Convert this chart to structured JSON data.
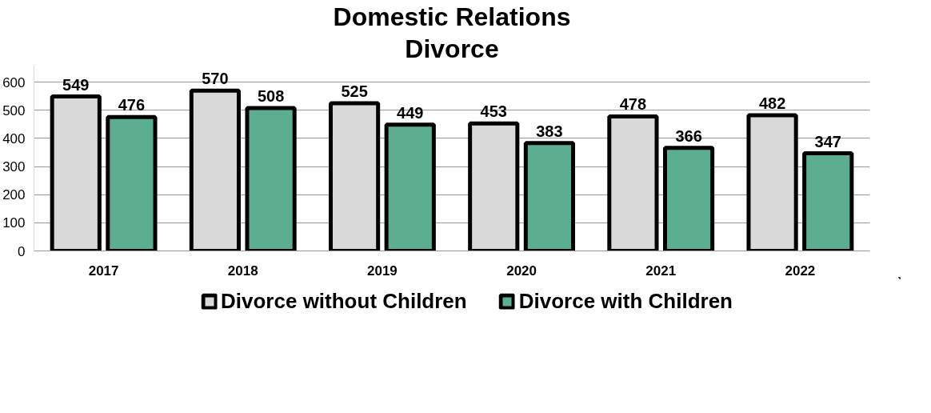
{
  "chart_data": {
    "type": "bar",
    "title": "Domestic Relations",
    "subtitle": "Divorce",
    "categories": [
      "2017",
      "2018",
      "2019",
      "2020",
      "2021",
      "2022"
    ],
    "series": [
      {
        "name": "Divorce without Children",
        "color": "#d9d9d9",
        "values": [
          549,
          570,
          525,
          453,
          478,
          482
        ]
      },
      {
        "name": "Divorce with Children",
        "color": "#5bae8f",
        "values": [
          476,
          508,
          449,
          383,
          366,
          347
        ]
      }
    ],
    "ylim": [
      0,
      660
    ],
    "yticks": [
      0,
      100,
      200,
      300,
      400,
      500,
      600
    ],
    "grid": "y",
    "legend": "bottom",
    "data_labels": true
  }
}
